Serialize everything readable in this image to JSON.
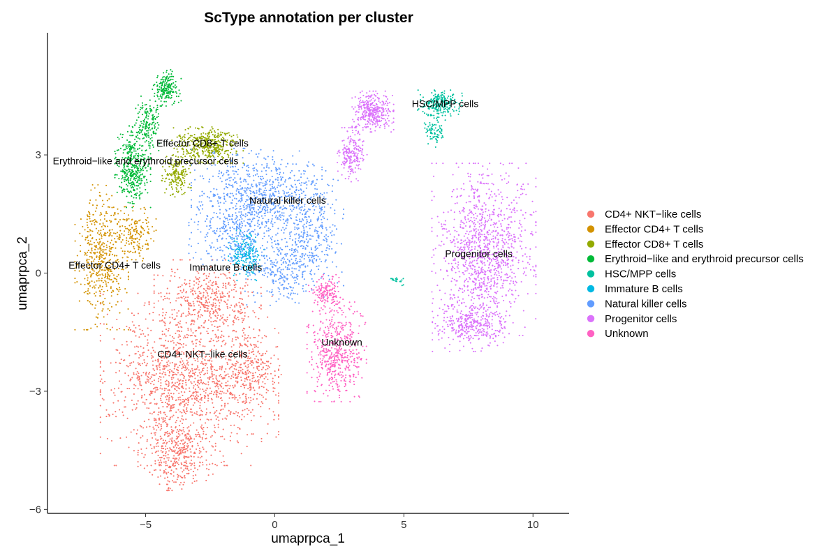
{
  "chart_data": {
    "type": "scatter",
    "title": "ScType annotation per cluster",
    "xlabel": "umaprpca_1",
    "ylabel": "umaprpca_2",
    "xlim": [
      -8.8,
      11.4
    ],
    "ylim": [
      -6.1,
      6.1
    ],
    "x_ticks": [
      -5,
      0,
      5,
      10
    ],
    "x_tick_labels": [
      "−5",
      "0",
      "5",
      "10"
    ],
    "y_ticks": [
      -6,
      -3,
      0,
      3
    ],
    "y_tick_labels": [
      "−6",
      "−3",
      "0",
      "3"
    ],
    "grid": false,
    "legend_position": "right",
    "series": [
      {
        "name": "CD4+ NKT−like cells",
        "color": "#F8766D"
      },
      {
        "name": "Effector CD4+ T cells",
        "color": "#D39200"
      },
      {
        "name": "Effector CD8+ T cells",
        "color": "#93AA00"
      },
      {
        "name": "Erythroid−like and erythroid precursor cells",
        "color": "#00BA38"
      },
      {
        "name": "HSC/MPP cells",
        "color": "#00C19F"
      },
      {
        "name": "Immature B cells",
        "color": "#00B9E3"
      },
      {
        "name": "Natural killer  cells",
        "color": "#619CFF"
      },
      {
        "name": "Progenitor cells",
        "color": "#DB72FB"
      },
      {
        "name": "Unknown",
        "color": "#FF61C3"
      }
    ],
    "cluster_labels": [
      {
        "text": "Effector CD8+ T cells",
        "x": -2.8,
        "y": 3.3
      },
      {
        "text": "Erythroid−like and erythroid precursor cells",
        "x": -5.0,
        "y": 2.85
      },
      {
        "text": "Natural killer  cells",
        "x": 0.5,
        "y": 1.85
      },
      {
        "text": "Effector CD4+ T cells",
        "x": -6.2,
        "y": 0.2
      },
      {
        "text": "Immature B cells",
        "x": -1.9,
        "y": 0.15
      },
      {
        "text": "CD4+ NKT−like cells",
        "x": -2.8,
        "y": -2.05
      },
      {
        "text": "Unknown",
        "x": 2.6,
        "y": -1.75
      },
      {
        "text": "Progenitor cells",
        "x": 7.9,
        "y": 0.5
      },
      {
        "text": "HSC/MPP cells",
        "x": 6.6,
        "y": 4.3
      }
    ],
    "clusters": [
      {
        "series": 0,
        "n": 2400,
        "blobs": [
          {
            "cx": -3.3,
            "cy": -2.7,
            "rx": 3.0,
            "ry": 1.9,
            "w": 1.0
          },
          {
            "cx": -3.8,
            "cy": -4.6,
            "rx": 1.3,
            "ry": 0.8,
            "w": 0.25
          },
          {
            "cx": -2.6,
            "cy": -0.7,
            "rx": 1.8,
            "ry": 0.9,
            "w": 0.3
          },
          {
            "cx": -0.9,
            "cy": -2.5,
            "rx": 1.0,
            "ry": 0.9,
            "w": 0.15
          }
        ]
      },
      {
        "series": 1,
        "n": 650,
        "blobs": [
          {
            "cx": -6.7,
            "cy": 0.4,
            "rx": 0.9,
            "ry": 1.6,
            "w": 1.0
          },
          {
            "cx": -5.4,
            "cy": 1.0,
            "rx": 0.7,
            "ry": 0.6,
            "w": 0.3
          }
        ]
      },
      {
        "series": 2,
        "n": 600,
        "blobs": [
          {
            "cx": -2.6,
            "cy": 3.25,
            "rx": 1.2,
            "ry": 0.4,
            "w": 1.0
          },
          {
            "cx": -3.8,
            "cy": 2.5,
            "rx": 0.5,
            "ry": 0.5,
            "w": 0.4
          }
        ]
      },
      {
        "series": 3,
        "n": 750,
        "blobs": [
          {
            "cx": -5.5,
            "cy": 2.7,
            "rx": 0.6,
            "ry": 0.9,
            "w": 1.0
          },
          {
            "cx": -4.2,
            "cy": 4.7,
            "rx": 0.5,
            "ry": 0.4,
            "w": 0.45
          },
          {
            "cx": -4.9,
            "cy": 3.8,
            "rx": 0.45,
            "ry": 0.6,
            "w": 0.4
          }
        ]
      },
      {
        "series": 4,
        "n": 320,
        "blobs": [
          {
            "cx": 6.4,
            "cy": 4.3,
            "rx": 0.75,
            "ry": 0.3,
            "w": 1.0
          },
          {
            "cx": 6.2,
            "cy": 3.6,
            "rx": 0.35,
            "ry": 0.35,
            "w": 0.35
          },
          {
            "cx": 4.7,
            "cy": -0.2,
            "rx": 0.3,
            "ry": 0.1,
            "w": 0.08
          }
        ]
      },
      {
        "series": 5,
        "n": 220,
        "blobs": [
          {
            "cx": -1.1,
            "cy": 0.5,
            "rx": 0.6,
            "ry": 0.6,
            "w": 1.0
          }
        ]
      },
      {
        "series": 6,
        "n": 1600,
        "blobs": [
          {
            "cx": -0.7,
            "cy": 1.9,
            "rx": 2.2,
            "ry": 1.1,
            "w": 1.0
          },
          {
            "cx": 1.4,
            "cy": 1.1,
            "rx": 1.1,
            "ry": 1.3,
            "w": 0.45
          },
          {
            "cx": 0.3,
            "cy": 0.1,
            "rx": 1.5,
            "ry": 0.8,
            "w": 0.35
          },
          {
            "cx": -1.6,
            "cy": 0.9,
            "rx": 1.5,
            "ry": 0.7,
            "w": 0.3
          }
        ]
      },
      {
        "series": 7,
        "n": 2000,
        "blobs": [
          {
            "cx": 8.1,
            "cy": 0.6,
            "rx": 1.75,
            "ry": 1.9,
            "w": 1.0
          },
          {
            "cx": 7.6,
            "cy": -1.3,
            "rx": 1.3,
            "ry": 0.6,
            "w": 0.3
          },
          {
            "cx": 3.8,
            "cy": 4.1,
            "rx": 0.7,
            "ry": 0.45,
            "w": 0.3
          },
          {
            "cx": 3.0,
            "cy": 3.0,
            "rx": 0.5,
            "ry": 0.6,
            "w": 0.18
          }
        ]
      },
      {
        "series": 8,
        "n": 650,
        "blobs": [
          {
            "cx": 2.4,
            "cy": -2.0,
            "rx": 1.0,
            "ry": 1.1,
            "w": 1.0
          },
          {
            "cx": 2.0,
            "cy": -0.5,
            "rx": 0.6,
            "ry": 0.4,
            "w": 0.3
          }
        ]
      }
    ]
  }
}
